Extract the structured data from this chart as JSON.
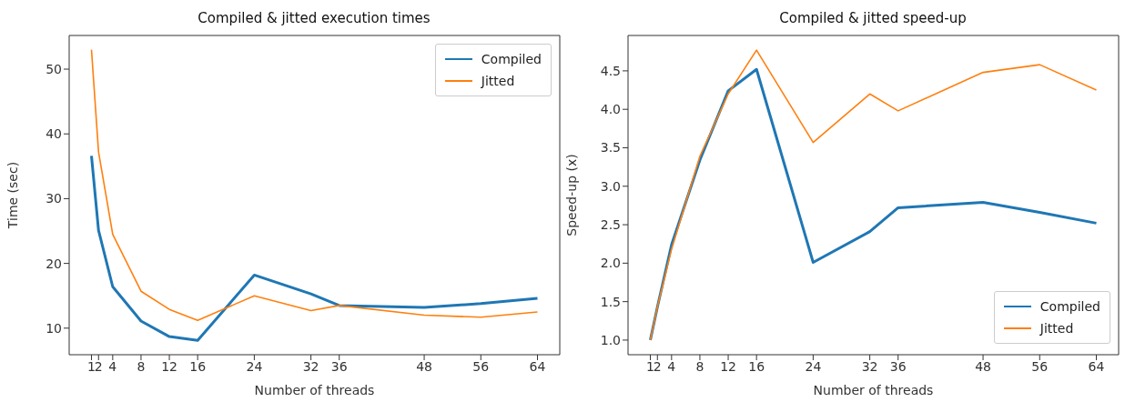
{
  "chart_data": [
    {
      "type": "line",
      "title": "Compiled & jitted execution times",
      "xlabel": "Number of threads",
      "ylabel": "Time (sec)",
      "x": [
        1,
        2,
        4,
        8,
        12,
        16,
        24,
        32,
        36,
        48,
        56,
        64
      ],
      "xlim": [
        -2.15,
        67.15
      ],
      "xticks": [
        1,
        2,
        4,
        8,
        12,
        16,
        24,
        32,
        36,
        48,
        56,
        64
      ],
      "ylim": [
        5.9,
        55.2
      ],
      "yticks": [
        10,
        20,
        30,
        40,
        50
      ],
      "grid": false,
      "legend": "top right",
      "marker": "none",
      "line_style": "solid",
      "series": [
        {
          "name": "Compiled",
          "color": "#1f77b4",
          "values": [
            36.6,
            25.1,
            16.4,
            11.1,
            8.7,
            8.1,
            18.2,
            15.3,
            13.5,
            13.2,
            13.8,
            14.6
          ]
        },
        {
          "name": "Jitted",
          "color": "#ff7f0e",
          "values": [
            53.0,
            37.2,
            24.5,
            15.7,
            12.9,
            11.2,
            15.0,
            12.7,
            13.5,
            12.0,
            11.7,
            12.5
          ]
        }
      ]
    },
    {
      "type": "line",
      "title": "Compiled & jitted speed-up",
      "xlabel": "Number of threads",
      "ylabel": "Speed-up (x)",
      "x": [
        1,
        2,
        4,
        8,
        12,
        16,
        24,
        32,
        36,
        48,
        56,
        64
      ],
      "xlim": [
        -2.15,
        67.15
      ],
      "xticks": [
        1,
        2,
        4,
        8,
        12,
        16,
        24,
        32,
        36,
        48,
        56,
        64
      ],
      "ylim": [
        0.81,
        4.96
      ],
      "yticks": [
        {
          "value": 1,
          "label": "1.0"
        },
        1.5,
        {
          "value": 2,
          "label": "2.0"
        },
        2.5,
        {
          "value": 3,
          "label": "3.0"
        },
        3.5,
        {
          "value": 4,
          "label": "4.0"
        },
        4.5
      ],
      "grid": false,
      "legend": "bottom right",
      "marker": "none",
      "line_style": "solid",
      "series": [
        {
          "name": "Compiled",
          "color": "#1f77b4",
          "values": [
            1.0,
            1.43,
            2.24,
            3.34,
            4.24,
            4.52,
            2.01,
            2.41,
            2.72,
            2.79,
            2.66,
            2.52
          ]
        },
        {
          "name": "Jitted",
          "color": "#ff7f0e",
          "values": [
            1.0,
            1.43,
            2.18,
            3.39,
            4.2,
            4.77,
            3.57,
            4.2,
            3.98,
            4.48,
            4.58,
            4.25
          ]
        }
      ]
    }
  ]
}
